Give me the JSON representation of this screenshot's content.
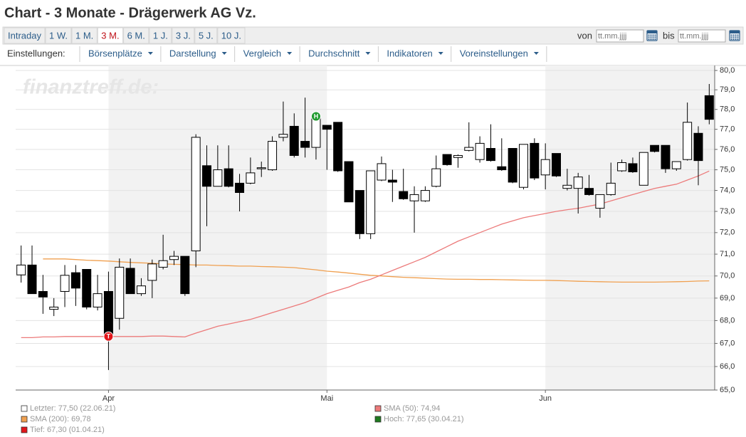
{
  "header": {
    "title": "Chart - 3 Monate - Drägerwerk AG Vz."
  },
  "tabs": [
    "Intraday",
    "1 W.",
    "1 M.",
    "3 M.",
    "6 M.",
    "1 J.",
    "3 J.",
    "5 J.",
    "10 J."
  ],
  "active_tab": 3,
  "date_range": {
    "from_label": "von",
    "to_label": "bis",
    "placeholder": "tt.mm.jjjj"
  },
  "settings": {
    "label": "Einstellungen:",
    "menus": [
      "Börsenplätze",
      "Darstellung",
      "Vergleich",
      "Durchschnitt",
      "Indikatoren",
      "Voreinstellungen"
    ]
  },
  "chart_data": {
    "type": "candlestick",
    "watermark": "finanztreff.de:",
    "log_scale": true,
    "grid": true,
    "up_color": "#ffffff",
    "down_color": "#000000",
    "categories": [
      null,
      null,
      null,
      null,
      null,
      null,
      null,
      null,
      "Apr",
      null,
      null,
      null,
      null,
      null,
      null,
      null,
      null,
      null,
      null,
      null,
      null,
      null,
      null,
      null,
      null,
      null,
      null,
      null,
      "Mai",
      null,
      null,
      null,
      null,
      null,
      null,
      null,
      null,
      null,
      null,
      null,
      null,
      null,
      null,
      null,
      null,
      null,
      null,
      null,
      "Jun",
      null,
      null,
      null,
      null,
      null,
      null,
      null,
      null,
      null,
      null,
      null,
      null,
      null,
      null,
      null
    ],
    "open": [
      70.05,
      70.5,
      69.3,
      68.5,
      69.3,
      70.15,
      70.3,
      68.6,
      69.3,
      68.1,
      70.35,
      69.2,
      69.8,
      70.4,
      70.75,
      70.9,
      71.15,
      75.2,
      74.2,
      75.05,
      74.35,
      74.35,
      75.05,
      75.0,
      76.6,
      77.15,
      76.4,
      76.1,
      77.2,
      77.35,
      75.4,
      74.0,
      71.95,
      74.5,
      74.5,
      73.95,
      73.5,
      73.5,
      74.2,
      75.75,
      75.6,
      75.95,
      75.5,
      76.05,
      75.15,
      76.05,
      74.15,
      76.3,
      74.75,
      75.8,
      74.1,
      74.1,
      74.1,
      73.15,
      73.8,
      74.95,
      75.3,
      74.25,
      76.2,
      76.2,
      75.05,
      75.5,
      76.8,
      78.7
    ],
    "high": [
      71.4,
      71.4,
      70.05,
      69.0,
      70.5,
      70.5,
      70.3,
      70.05,
      70.2,
      70.8,
      70.8,
      69.9,
      70.75,
      71.9,
      71.15,
      70.9,
      76.75,
      76.2,
      76.2,
      76.2,
      74.8,
      75.6,
      75.4,
      76.65,
      78.4,
      77.8,
      78.6,
      77.65,
      77.2,
      77.35,
      75.4,
      74.0,
      74.95,
      75.65,
      75.0,
      75.05,
      74.2,
      74.2,
      75.7,
      75.75,
      75.75,
      77.35,
      76.65,
      77.25,
      76.55,
      76.05,
      76.25,
      76.55,
      76.3,
      75.8,
      75.05,
      74.85,
      74.75,
      73.8,
      75.35,
      75.5,
      75.6,
      75.85,
      76.2,
      76.2,
      75.4,
      78.35,
      77.15,
      79.3
    ],
    "low": [
      69.7,
      69.2,
      68.3,
      68.2,
      68.6,
      68.65,
      68.5,
      68.45,
      65.85,
      67.6,
      69.2,
      69.1,
      69.0,
      70.3,
      70.5,
      69.1,
      70.4,
      72.3,
      74.2,
      74.15,
      73.0,
      74.3,
      74.65,
      74.95,
      76.4,
      75.6,
      75.6,
      75.5,
      75.0,
      74.9,
      73.45,
      71.7,
      71.7,
      74.45,
      73.45,
      73.55,
      72.0,
      73.45,
      74.15,
      75.2,
      75.1,
      75.9,
      75.35,
      75.4,
      74.95,
      74.35,
      74.05,
      74.5,
      74.05,
      74.65,
      74.0,
      72.9,
      73.75,
      72.7,
      73.75,
      74.9,
      74.85,
      74.25,
      75.85,
      74.85,
      74.95,
      75.45,
      74.25,
      77.25
    ],
    "close": [
      70.5,
      69.2,
      69.05,
      68.6,
      70.03,
      69.45,
      68.6,
      69.2,
      67.3,
      70.4,
      69.2,
      69.55,
      70.55,
      70.7,
      70.9,
      69.2,
      76.6,
      74.2,
      75.0,
      74.2,
      73.9,
      74.85,
      75.1,
      76.4,
      76.75,
      75.7,
      76.1,
      77.65,
      77.0,
      74.95,
      73.45,
      71.95,
      74.95,
      75.3,
      74.4,
      73.6,
      73.8,
      74.0,
      75.05,
      75.25,
      75.7,
      76.1,
      76.3,
      75.45,
      75.0,
      74.4,
      76.25,
      74.6,
      75.5,
      74.7,
      74.25,
      74.65,
      73.8,
      73.8,
      74.35,
      75.35,
      74.9,
      75.85,
      75.9,
      75.05,
      75.4,
      77.35,
      75.45,
      77.5
    ],
    "overlays": [
      {
        "color": "#f0a050",
        "values": [
          null,
          null,
          70.78,
          70.78,
          70.78,
          70.75,
          70.72,
          70.7,
          70.68,
          70.65,
          70.62,
          70.6,
          70.58,
          70.55,
          70.53,
          70.52,
          70.5,
          70.5,
          70.48,
          70.47,
          70.45,
          70.45,
          70.43,
          70.42,
          70.4,
          70.38,
          70.33,
          70.28,
          70.22,
          70.18,
          70.13,
          70.08,
          70.03,
          70.0,
          69.97,
          69.94,
          69.92,
          69.9,
          69.88,
          69.86,
          69.85,
          69.85,
          69.84,
          69.84,
          69.83,
          69.82,
          69.81,
          69.8,
          69.8,
          69.79,
          69.78,
          69.76,
          69.75,
          69.74,
          69.73,
          69.72,
          69.72,
          69.72,
          69.72,
          69.73,
          69.74,
          69.75,
          69.77,
          69.78
        ]
      },
      {
        "color": "#ec7a7a",
        "values": [
          67.25,
          67.25,
          67.28,
          67.28,
          67.3,
          67.3,
          67.3,
          67.3,
          67.3,
          67.3,
          67.3,
          67.3,
          67.32,
          67.32,
          67.3,
          67.28,
          67.45,
          67.6,
          67.75,
          67.85,
          67.95,
          68.05,
          68.2,
          68.35,
          68.5,
          68.65,
          68.8,
          69.0,
          69.2,
          69.35,
          69.5,
          69.7,
          69.85,
          70.05,
          70.25,
          70.45,
          70.65,
          70.85,
          71.1,
          71.35,
          71.6,
          71.8,
          72.0,
          72.2,
          72.4,
          72.55,
          72.7,
          72.8,
          72.9,
          73.0,
          73.08,
          73.15,
          73.25,
          73.35,
          73.5,
          73.65,
          73.8,
          73.95,
          74.1,
          74.2,
          74.3,
          74.5,
          74.7,
          74.94
        ]
      }
    ],
    "markers": [
      {
        "label": "T",
        "category_index": 8,
        "value": 67.3,
        "color": "#e2161b"
      },
      {
        "label": "H",
        "category_index": 27,
        "value": 77.65,
        "color": "#1f9a2e"
      }
    ],
    "ylim": [
      65,
      80
    ],
    "yticks": [
      {
        "value": 65,
        "label": "65,0"
      },
      {
        "value": 66,
        "label": "66,0"
      },
      {
        "value": 67,
        "label": "67,0"
      },
      {
        "value": 68,
        "label": "68,0"
      },
      {
        "value": 69,
        "label": "69,0"
      },
      {
        "value": 70,
        "label": "70,0"
      },
      {
        "value": 71,
        "label": "71,0"
      },
      {
        "value": 72,
        "label": "72,0"
      },
      {
        "value": 73,
        "label": "73,0"
      },
      {
        "value": 74,
        "label": "74,0"
      },
      {
        "value": 75,
        "label": "75,0"
      },
      {
        "value": 76,
        "label": "76,0"
      },
      {
        "value": 77,
        "label": "77,0"
      },
      {
        "value": 78,
        "label": "78,0"
      },
      {
        "value": 79,
        "label": "79,0"
      },
      {
        "value": 80,
        "label": "80,0"
      }
    ],
    "legend": [
      {
        "label": "Letzter: 77,50 (22.06.21)",
        "color": "#ffffff"
      },
      {
        "label": "SMA (200): 69,78",
        "color": "#f0a050"
      },
      {
        "label": "Tief: 67,30 (01.04.21)",
        "color": "#e2161b"
      },
      {
        "label": "SMA (50): 74,94",
        "color": "#ec7a7a"
      },
      {
        "label": "Hoch: 77,65 (30.04.21)",
        "color": "#1f7a1f"
      }
    ]
  }
}
